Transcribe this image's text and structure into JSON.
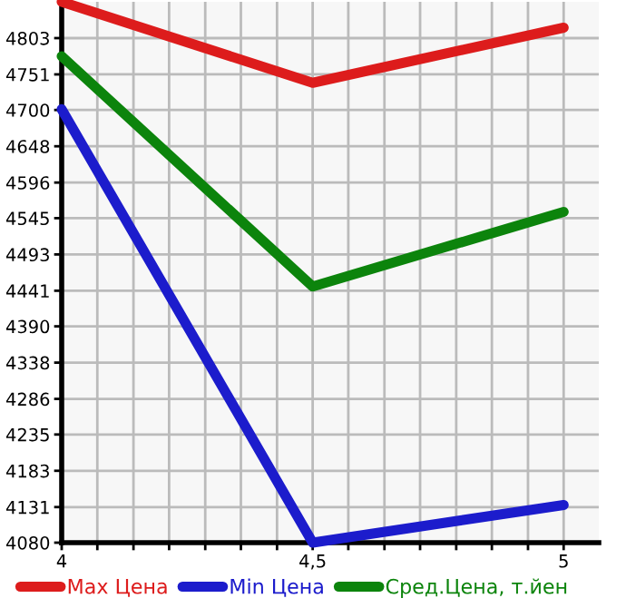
{
  "chart_data": {
    "type": "line",
    "x": [
      4,
      4.5,
      5
    ],
    "series": [
      {
        "name": "Max Цена",
        "color": "#dd1c1c",
        "values": [
          4855,
          4739,
          4818
        ]
      },
      {
        "name": "Min Цена",
        "color": "#1c1ccc",
        "values": [
          4701,
          4080,
          4134
        ]
      },
      {
        "name": "Сред.Цена, т.йен",
        "color": "#0c840c",
        "values": [
          4777,
          4447,
          4554
        ]
      }
    ],
    "xlim": [
      4,
      5.07
    ],
    "xticks": [
      {
        "value": 4,
        "label": "4"
      },
      {
        "value": 4.071,
        "label": null
      },
      {
        "value": 4.143,
        "label": null
      },
      {
        "value": 4.214,
        "label": null
      },
      {
        "value": 4.286,
        "label": null
      },
      {
        "value": 4.357,
        "label": null
      },
      {
        "value": 4.429,
        "label": null
      },
      {
        "value": 4.5,
        "label": "4,5"
      },
      {
        "value": 4.571,
        "label": null
      },
      {
        "value": 4.643,
        "label": null
      },
      {
        "value": 4.714,
        "label": null
      },
      {
        "value": 4.786,
        "label": null
      },
      {
        "value": 4.857,
        "label": null
      },
      {
        "value": 4.929,
        "label": null
      },
      {
        "value": 5,
        "label": "5"
      }
    ],
    "ylim": [
      4080,
      4855
    ],
    "yticks": [
      4080,
      4131,
      4183,
      4235,
      4286,
      4338,
      4390,
      4441,
      4493,
      4545,
      4596,
      4648,
      4700,
      4751,
      4803
    ],
    "grid": true,
    "legend": "bottom",
    "marker": "none",
    "line_style": "solid"
  }
}
